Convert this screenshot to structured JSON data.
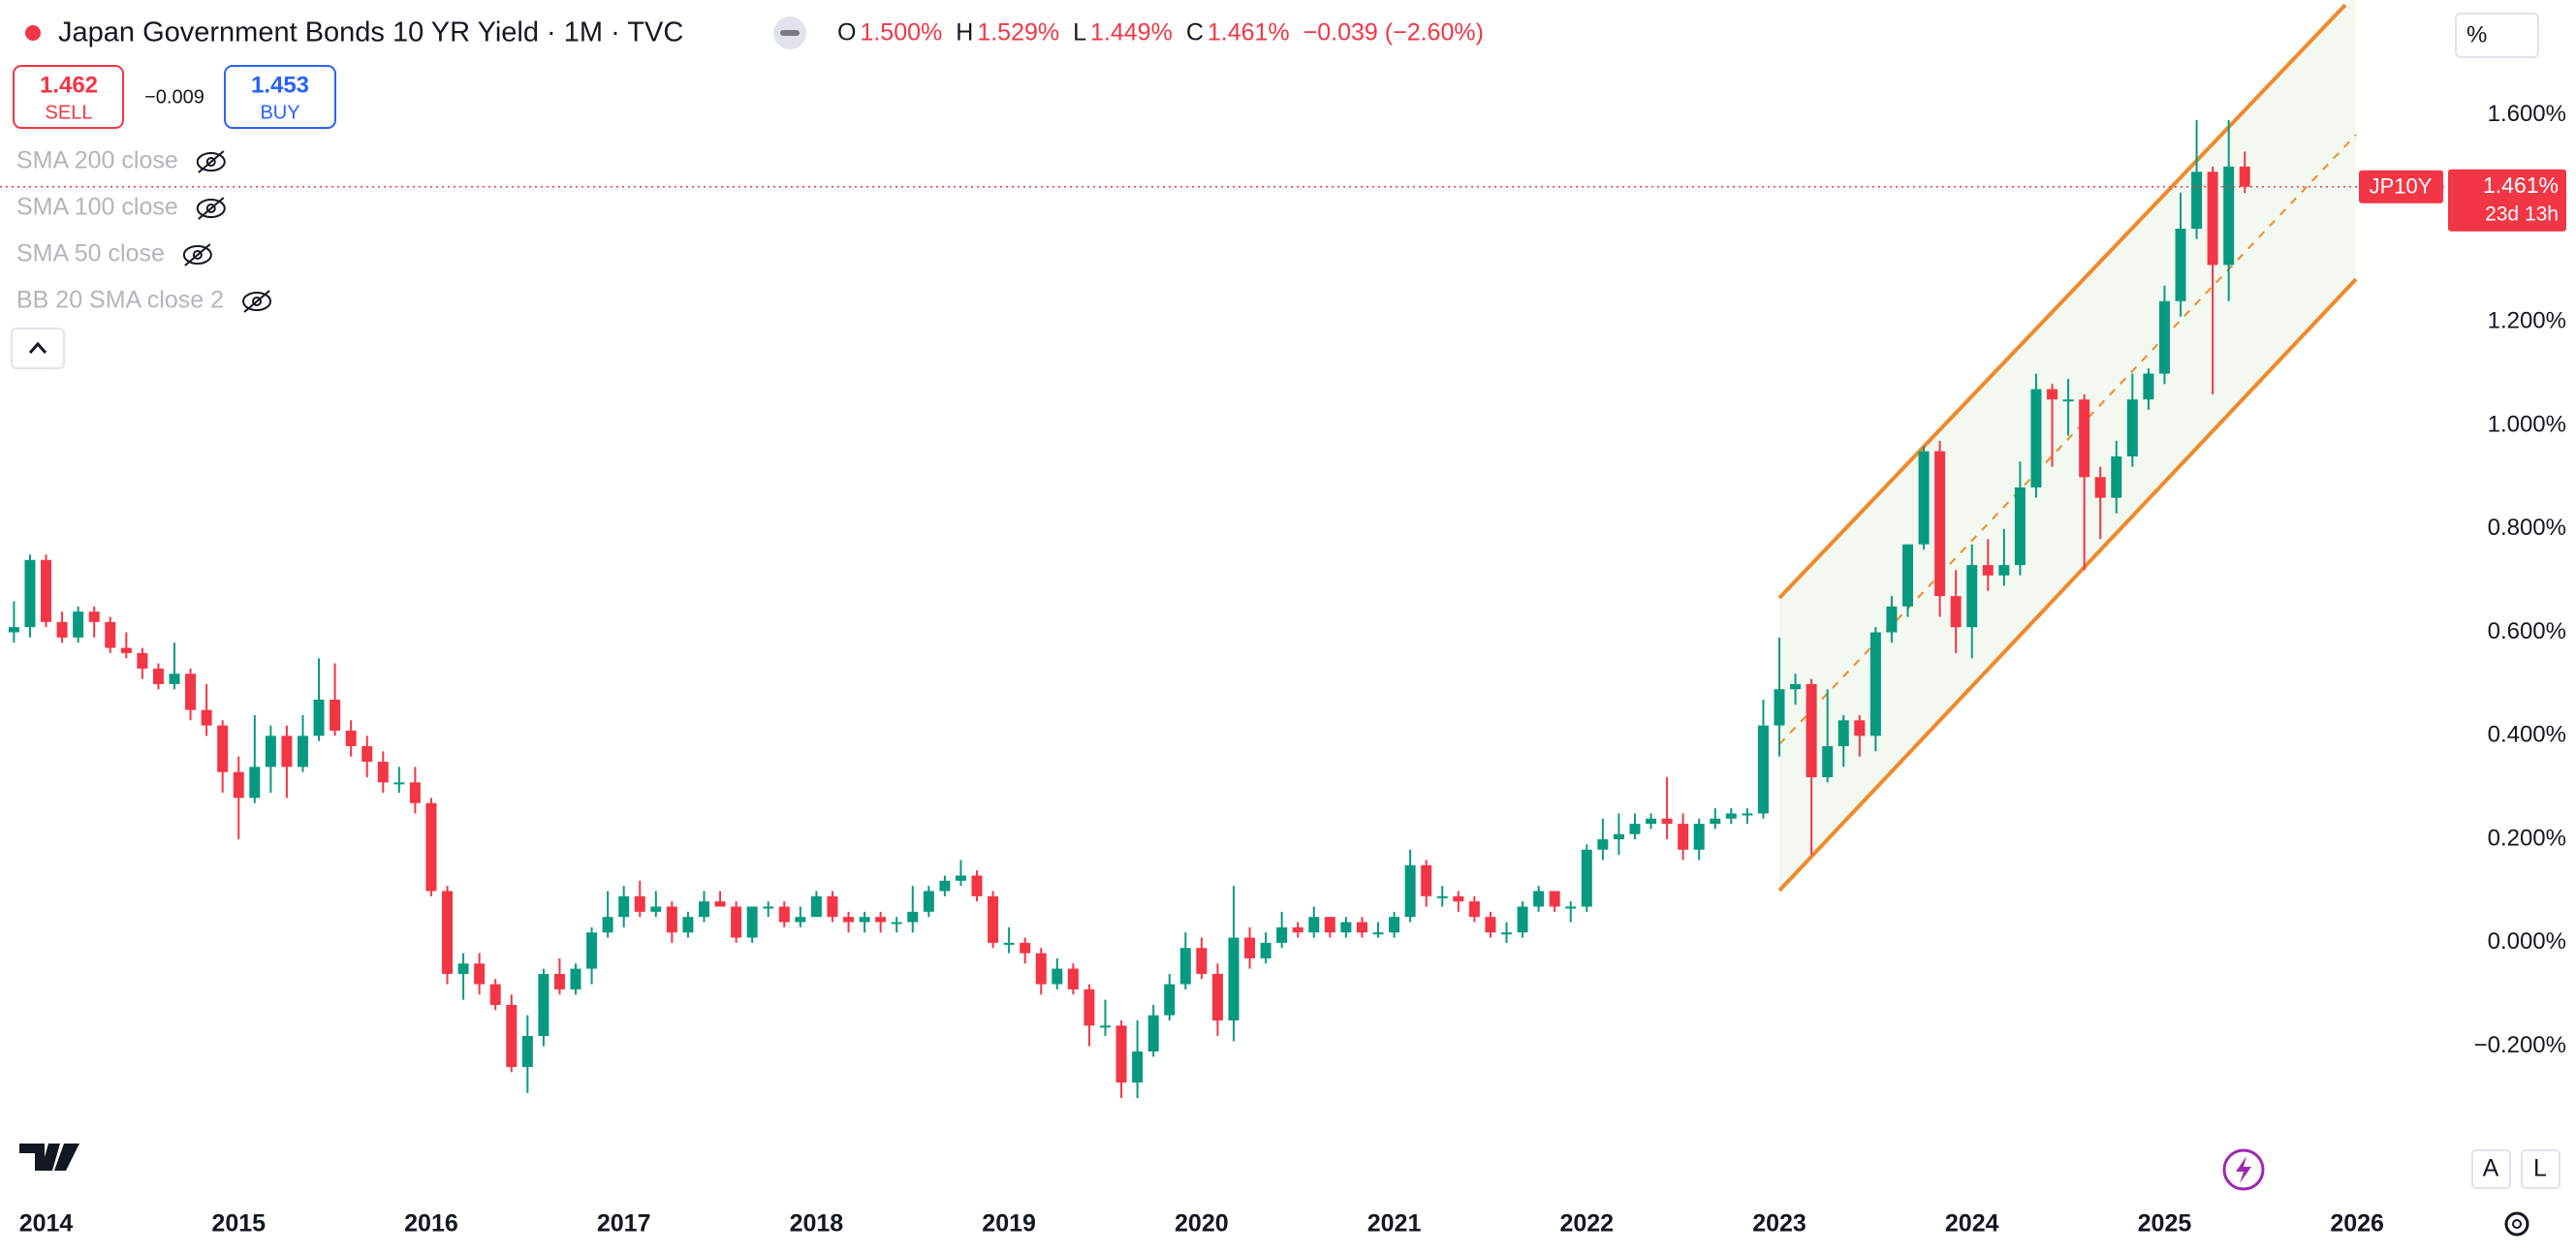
{
  "header": {
    "title": "Japan Government Bonds 10 YR Yield · 1M · TVC",
    "ohlc": [
      {
        "label": "O",
        "value": "1.500%"
      },
      {
        "label": "H",
        "value": "1.529%"
      },
      {
        "label": "L",
        "value": "1.449%"
      },
      {
        "label": "C",
        "value": "1.461%"
      }
    ],
    "change": "−0.039 (−2.60%)"
  },
  "trade": {
    "sell_price": "1.462",
    "sell_label": "SELL",
    "spread": "−0.009",
    "buy_price": "1.453",
    "buy_label": "BUY"
  },
  "indicators": [
    "SMA 200 close",
    "SMA 100 close",
    "SMA 50 close",
    "BB 20 SMA close 2"
  ],
  "controls": [
    "A",
    "L"
  ],
  "chart_data": {
    "type": "candlestick",
    "y_unit": "%",
    "up_color": "#089981",
    "down_color": "#f23645",
    "grid": false,
    "last_price": {
      "symbol": "JP10Y",
      "label": "1.461%",
      "countdown": "23d 13h"
    },
    "ylim": [
      -0.489,
      1.822
    ],
    "yticks": [
      {
        "value": 1.6,
        "label": "1.600%"
      },
      {
        "value": 1.2,
        "label": "1.200%"
      },
      {
        "value": 1.0,
        "label": "1.000%"
      },
      {
        "value": 0.8,
        "label": "0.800%"
      },
      {
        "value": 0.6,
        "label": "0.600%"
      },
      {
        "value": 0.4,
        "label": "0.400%"
      },
      {
        "value": 0.2,
        "label": "0.200%"
      },
      {
        "value": 0.0,
        "label": "0.000%"
      },
      {
        "value": -0.2,
        "label": "−0.200%"
      }
    ],
    "categories": [
      null,
      null,
      "2014",
      null,
      null,
      null,
      null,
      null,
      null,
      null,
      null,
      null,
      null,
      null,
      "2015",
      null,
      null,
      null,
      null,
      null,
      null,
      null,
      null,
      null,
      null,
      null,
      "2016",
      null,
      null,
      null,
      null,
      null,
      null,
      null,
      null,
      null,
      null,
      null,
      "2017",
      null,
      null,
      null,
      null,
      null,
      null,
      null,
      null,
      null,
      null,
      null,
      "2018",
      null,
      null,
      null,
      null,
      null,
      null,
      null,
      null,
      null,
      null,
      null,
      "2019",
      null,
      null,
      null,
      null,
      null,
      null,
      null,
      null,
      null,
      null,
      null,
      "2020",
      null,
      null,
      null,
      null,
      null,
      null,
      null,
      null,
      null,
      null,
      null,
      "2021",
      null,
      null,
      null,
      null,
      null,
      null,
      null,
      null,
      null,
      null,
      null,
      "2022",
      null,
      null,
      null,
      null,
      null,
      null,
      null,
      null,
      null,
      null,
      null,
      "2023",
      null,
      null,
      null,
      null,
      null,
      null,
      null,
      null,
      null,
      null,
      null,
      "2024",
      null,
      null,
      null,
      null,
      null,
      null,
      null,
      null,
      null,
      null,
      null,
      "2025",
      null,
      null,
      null,
      null,
      null,
      null,
      null,
      null,
      null,
      null,
      null,
      "2026"
    ],
    "open": [
      0.6,
      0.61,
      0.74,
      0.62,
      0.59,
      0.64,
      0.62,
      0.57,
      0.56,
      0.53,
      0.5,
      0.52,
      0.45,
      0.42,
      0.33,
      0.28,
      0.34,
      0.4,
      0.34,
      0.4,
      0.47,
      0.41,
      0.38,
      0.35,
      0.31,
      0.31,
      0.27,
      0.1,
      -0.06,
      -0.04,
      -0.08,
      -0.12,
      -0.24,
      -0.18,
      -0.06,
      -0.09,
      -0.05,
      0.02,
      0.05,
      0.09,
      0.06,
      0.07,
      0.02,
      0.05,
      0.08,
      0.07,
      0.01,
      0.07,
      0.07,
      0.04,
      0.05,
      0.09,
      0.05,
      0.04,
      0.05,
      0.04,
      0.04,
      0.06,
      0.1,
      0.12,
      0.13,
      0.09,
      0.0,
      0.0,
      -0.02,
      -0.08,
      -0.05,
      -0.09,
      -0.16,
      -0.16,
      -0.27,
      -0.21,
      -0.14,
      -0.08,
      -0.01,
      -0.06,
      -0.15,
      0.01,
      -0.03,
      0.0,
      0.03,
      0.02,
      0.05,
      0.02,
      0.04,
      0.02,
      0.02,
      0.05,
      0.15,
      0.09,
      0.09,
      0.08,
      0.05,
      0.02,
      0.02,
      0.07,
      0.1,
      0.07,
      0.07,
      0.18,
      0.2,
      0.21,
      0.23,
      0.24,
      0.23,
      0.18,
      0.23,
      0.24,
      0.25,
      0.25,
      0.42,
      0.49,
      0.5,
      0.32,
      0.38,
      0.43,
      0.4,
      0.6,
      0.65,
      0.77,
      0.95,
      0.67,
      0.61,
      0.73,
      0.71,
      0.73,
      0.88,
      1.07,
      1.05,
      1.05,
      0.9,
      0.86,
      0.94,
      1.05,
      1.1,
      1.24,
      1.38,
      1.49,
      1.31,
      1.5,
      null,
      null,
      null,
      null,
      null,
      null,
      null
    ],
    "high": [
      0.66,
      0.75,
      0.75,
      0.64,
      0.65,
      0.65,
      0.63,
      0.6,
      0.57,
      0.54,
      0.58,
      0.53,
      0.5,
      0.43,
      0.36,
      0.44,
      0.42,
      0.42,
      0.44,
      0.55,
      0.54,
      0.43,
      0.4,
      0.37,
      0.34,
      0.34,
      0.28,
      0.11,
      -0.02,
      -0.02,
      -0.07,
      -0.1,
      -0.14,
      -0.05,
      -0.03,
      -0.04,
      0.03,
      0.1,
      0.11,
      0.12,
      0.1,
      0.08,
      0.06,
      0.1,
      0.1,
      0.08,
      0.07,
      0.08,
      0.08,
      0.07,
      0.1,
      0.1,
      0.06,
      0.06,
      0.06,
      0.05,
      0.11,
      0.11,
      0.13,
      0.16,
      0.14,
      0.1,
      0.03,
      0.01,
      -0.01,
      -0.03,
      -0.04,
      -0.08,
      -0.11,
      -0.15,
      -0.15,
      -0.12,
      -0.06,
      0.02,
      0.01,
      -0.04,
      0.11,
      0.03,
      0.02,
      0.06,
      0.04,
      0.07,
      0.05,
      0.05,
      0.05,
      0.04,
      0.06,
      0.18,
      0.16,
      0.11,
      0.1,
      0.09,
      0.06,
      0.04,
      0.08,
      0.11,
      0.1,
      0.08,
      0.19,
      0.24,
      0.25,
      0.25,
      0.25,
      0.32,
      0.25,
      0.24,
      0.26,
      0.26,
      0.26,
      0.47,
      0.59,
      0.52,
      0.51,
      0.49,
      0.44,
      0.44,
      0.61,
      0.67,
      0.77,
      0.96,
      0.97,
      0.72,
      0.77,
      0.78,
      0.8,
      0.93,
      1.1,
      1.08,
      1.09,
      1.06,
      0.92,
      0.97,
      1.1,
      1.11,
      1.27,
      1.45,
      1.59,
      1.5,
      1.59,
      1.529,
      null,
      null,
      null,
      null,
      null,
      null,
      null
    ],
    "low": [
      0.58,
      0.59,
      0.61,
      0.58,
      0.58,
      0.59,
      0.56,
      0.55,
      0.51,
      0.49,
      0.49,
      0.43,
      0.4,
      0.29,
      0.2,
      0.27,
      0.29,
      0.28,
      0.33,
      0.39,
      0.4,
      0.36,
      0.32,
      0.29,
      0.29,
      0.25,
      0.09,
      -0.08,
      -0.11,
      -0.1,
      -0.13,
      -0.25,
      -0.29,
      -0.2,
      -0.1,
      -0.1,
      -0.08,
      0.01,
      0.03,
      0.05,
      0.05,
      0.0,
      0.01,
      0.04,
      0.07,
      0.0,
      0.0,
      0.05,
      0.03,
      0.03,
      0.05,
      0.04,
      0.02,
      0.02,
      0.02,
      0.02,
      0.02,
      0.05,
      0.09,
      0.11,
      0.08,
      -0.01,
      -0.02,
      -0.04,
      -0.1,
      -0.09,
      -0.1,
      -0.2,
      -0.18,
      -0.3,
      -0.3,
      -0.22,
      -0.15,
      -0.09,
      -0.07,
      -0.18,
      -0.19,
      -0.05,
      -0.04,
      -0.01,
      0.01,
      0.01,
      0.01,
      0.01,
      0.01,
      0.01,
      0.01,
      0.04,
      0.07,
      0.07,
      0.06,
      0.04,
      0.01,
      0.0,
      0.01,
      0.06,
      0.06,
      0.04,
      0.06,
      0.16,
      0.17,
      0.2,
      0.22,
      0.2,
      0.16,
      0.16,
      0.22,
      0.23,
      0.23,
      0.24,
      0.36,
      0.46,
      0.17,
      0.31,
      0.34,
      0.36,
      0.37,
      0.58,
      0.63,
      0.76,
      0.63,
      0.56,
      0.55,
      0.68,
      0.69,
      0.71,
      0.86,
      0.92,
      0.98,
      0.72,
      0.78,
      0.83,
      0.92,
      1.03,
      1.08,
      1.21,
      1.36,
      1.06,
      1.24,
      1.449,
      null,
      null,
      null,
      null,
      null,
      null,
      null
    ],
    "close": [
      0.61,
      0.74,
      0.62,
      0.59,
      0.64,
      0.62,
      0.57,
      0.56,
      0.53,
      0.5,
      0.52,
      0.45,
      0.42,
      0.33,
      0.28,
      0.34,
      0.4,
      0.34,
      0.4,
      0.47,
      0.41,
      0.38,
      0.35,
      0.31,
      0.31,
      0.27,
      0.1,
      -0.06,
      -0.04,
      -0.08,
      -0.12,
      -0.24,
      -0.18,
      -0.06,
      -0.09,
      -0.05,
      0.02,
      0.05,
      0.09,
      0.06,
      0.07,
      0.02,
      0.05,
      0.08,
      0.07,
      0.01,
      0.07,
      0.07,
      0.04,
      0.05,
      0.09,
      0.05,
      0.04,
      0.05,
      0.04,
      0.04,
      0.06,
      0.1,
      0.12,
      0.13,
      0.09,
      0.0,
      0.0,
      -0.02,
      -0.08,
      -0.05,
      -0.09,
      -0.16,
      -0.16,
      -0.27,
      -0.21,
      -0.14,
      -0.08,
      -0.01,
      -0.06,
      -0.15,
      0.01,
      -0.03,
      0.0,
      0.03,
      0.02,
      0.05,
      0.02,
      0.04,
      0.02,
      0.02,
      0.05,
      0.15,
      0.09,
      0.09,
      0.08,
      0.05,
      0.02,
      0.02,
      0.07,
      0.1,
      0.07,
      0.07,
      0.18,
      0.2,
      0.21,
      0.23,
      0.24,
      0.23,
      0.18,
      0.23,
      0.24,
      0.25,
      0.25,
      0.42,
      0.49,
      0.5,
      0.32,
      0.38,
      0.43,
      0.4,
      0.6,
      0.65,
      0.77,
      0.95,
      0.67,
      0.61,
      0.73,
      0.71,
      0.73,
      0.88,
      1.07,
      1.05,
      1.05,
      0.9,
      0.86,
      0.94,
      1.05,
      1.1,
      1.24,
      1.38,
      1.49,
      1.31,
      1.5,
      1.461,
      null,
      null,
      null,
      null,
      null,
      null,
      null
    ]
  }
}
